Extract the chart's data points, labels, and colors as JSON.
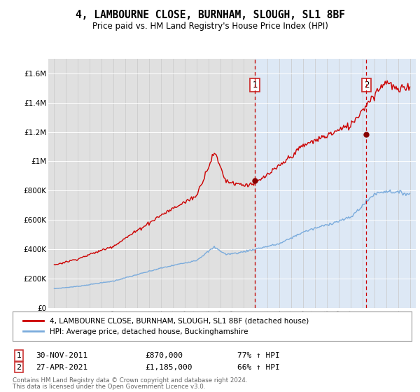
{
  "title": "4, LAMBOURNE CLOSE, BURNHAM, SLOUGH, SL1 8BF",
  "subtitle": "Price paid vs. HM Land Registry's House Price Index (HPI)",
  "plot_bg_left": "#e8e8e8",
  "plot_bg_right": "#dde8f5",
  "ylim": [
    0,
    1700000
  ],
  "yticks": [
    0,
    200000,
    400000,
    600000,
    800000,
    1000000,
    1200000,
    1400000,
    1600000
  ],
  "ytick_labels": [
    "£0",
    "£200K",
    "£400K",
    "£600K",
    "£800K",
    "£1M",
    "£1.2M",
    "£1.4M",
    "£1.6M"
  ],
  "legend_line1": "4, LAMBOURNE CLOSE, BURNHAM, SLOUGH, SL1 8BF (detached house)",
  "legend_line2": "HPI: Average price, detached house, Buckinghamshire",
  "line1_color": "#cc0000",
  "line2_color": "#7aabdc",
  "sale1_x": 2011.92,
  "sale1_y": 870000,
  "sale1_label": "1",
  "sale2_x": 2021.33,
  "sale2_y": 1185000,
  "sale2_label": "2",
  "footnote3": "Contains HM Land Registry data © Crown copyright and database right 2024.",
  "footnote4": "This data is licensed under the Open Government Licence v3.0.",
  "xmin": 1995,
  "xmax": 2025
}
